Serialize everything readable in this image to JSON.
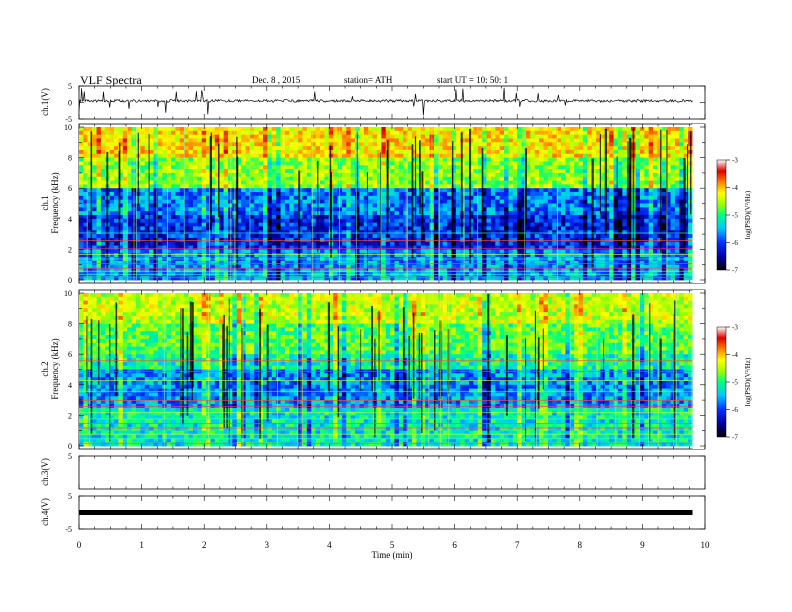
{
  "header": {
    "title": "VLF  Spectra",
    "date": "Dec. 8  , 2015",
    "station": "station= ATH",
    "start": "start  UT  =    10: 50: 1"
  },
  "chart_data": {
    "type": "heatmap",
    "xlabel": "Time  (min)",
    "x_ticks": [
      "0",
      "1",
      "2",
      "3",
      "4",
      "5",
      "6",
      "7",
      "8",
      "9",
      "10"
    ],
    "xlim": [
      0,
      10
    ],
    "data_end_min": 9.8,
    "panels": [
      {
        "id": "ch1-waveform",
        "type": "line",
        "ylabel": "ch.1(V)",
        "y_ticks": [
          "5",
          "0",
          "-5"
        ],
        "ylim": [
          -5,
          5
        ],
        "baseline": 0.5,
        "noise_amplitude": 0.5
      },
      {
        "id": "ch1-spectrogram",
        "type": "heatmap",
        "ylabel_channel": "ch.1",
        "ylabel": "Frequency  (kHz)",
        "y_ticks": [
          "0",
          "2",
          "4",
          "6",
          "8",
          "10"
        ],
        "ylim": [
          0,
          10
        ],
        "colorbar": {
          "label": "log(PSD)(V²/Hz)",
          "ticks": [
            "-3",
            "-4",
            "-5",
            "-6",
            "-7"
          ],
          "range": [
            -7,
            -3
          ]
        }
      },
      {
        "id": "ch2-spectrogram",
        "type": "heatmap",
        "ylabel_channel": "ch.2",
        "ylabel": "Frequency  (kHz)",
        "y_ticks": [
          "0",
          "2",
          "4",
          "6",
          "8",
          "10"
        ],
        "ylim": [
          0,
          10
        ],
        "colorbar": {
          "label": "log(PSD)(V²/Hz)",
          "ticks": [
            "-3",
            "-4",
            "-5",
            "-6",
            "-7"
          ],
          "range": [
            -7,
            -3
          ]
        }
      },
      {
        "id": "ch3-waveform",
        "type": "line",
        "ylabel": "ch.3(V)",
        "y_ticks": [
          "5"
        ],
        "ylim": [
          -5,
          5
        ]
      },
      {
        "id": "ch4-waveform",
        "type": "line",
        "ylabel": "ch.4(V)",
        "y_ticks": [
          "5",
          "-5"
        ],
        "ylim": [
          -5,
          5
        ],
        "baseline": 0
      }
    ],
    "colors": {
      "colormap": [
        "#000000",
        "#0000a0",
        "#0030ff",
        "#00c8ff",
        "#00ff80",
        "#a0ff00",
        "#ffff00",
        "#ff8000",
        "#e00000",
        "#ffffff"
      ]
    }
  }
}
